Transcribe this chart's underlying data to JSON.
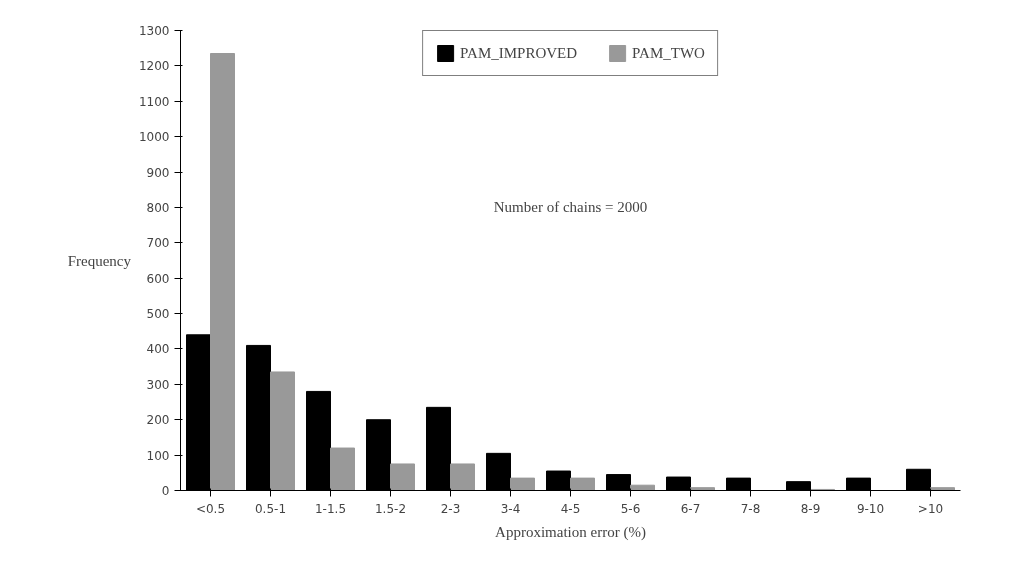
{
  "chart_data": {
    "type": "bar",
    "xlabel": "Approximation error (%)",
    "ylabel": "Frequency",
    "categories": [
      "<0.5",
      "0.5-1",
      "1-1.5",
      "1.5-2",
      "2-3",
      "3-4",
      "4-5",
      "5-6",
      "6-7",
      "7-8",
      "8-9",
      "9-10",
      ">10"
    ],
    "series": [
      {
        "name": "PAM_IMPROVED",
        "color": "#000000",
        "values": [
          440,
          410,
          280,
          200,
          235,
          105,
          55,
          45,
          38,
          35,
          25,
          35,
          60
        ]
      },
      {
        "name": "PAM_TWO",
        "color": "#999999",
        "values": [
          1235,
          335,
          120,
          75,
          75,
          35,
          35,
          15,
          8,
          0,
          3,
          0,
          8
        ]
      }
    ],
    "ylim": [
      0,
      1300
    ],
    "yticks": [
      0,
      100,
      200,
      300,
      400,
      500,
      600,
      700,
      800,
      900,
      1000,
      1100,
      1200,
      1300
    ],
    "annotations": [
      "Number of chains = 2000"
    ],
    "legend": "top",
    "grid": false
  }
}
